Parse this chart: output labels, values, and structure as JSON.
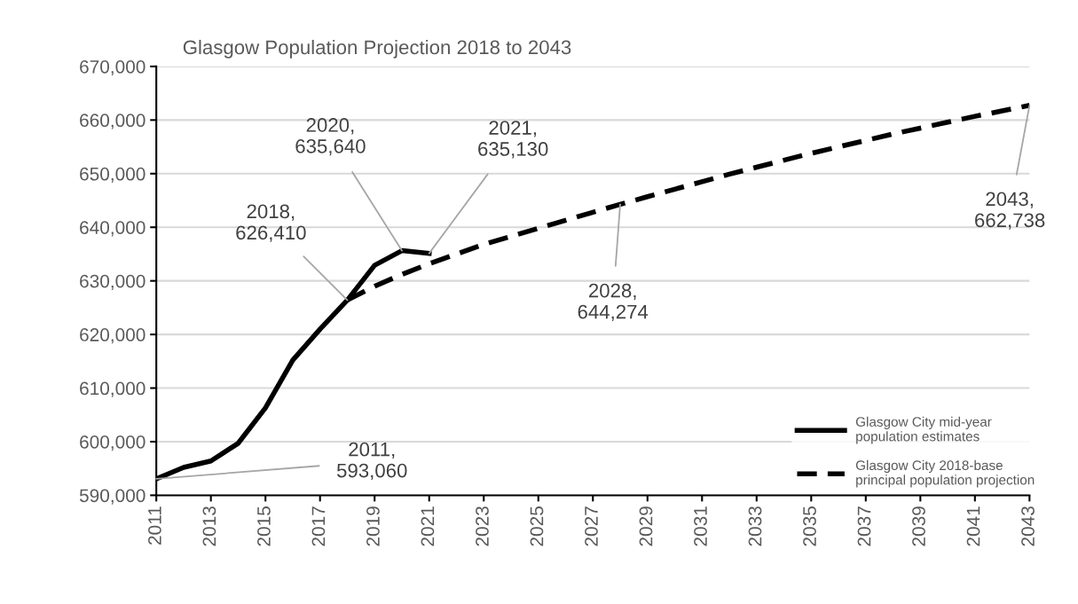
{
  "chart_data": {
    "type": "line",
    "title": "Glasgow Population Projection 2018 to 2043",
    "xlim": [
      2011,
      2043
    ],
    "xticks": [
      2011,
      2013,
      2015,
      2017,
      2019,
      2021,
      2023,
      2025,
      2027,
      2029,
      2031,
      2033,
      2035,
      2037,
      2039,
      2041,
      2043
    ],
    "ylim": [
      590000,
      670000
    ],
    "yticks": [
      {
        "value": 590000,
        "label": "590,000"
      },
      {
        "value": 600000,
        "label": "600,000"
      },
      {
        "value": 610000,
        "label": "610,000"
      },
      {
        "value": 620000,
        "label": "620,000"
      },
      {
        "value": 630000,
        "label": "630,000"
      },
      {
        "value": 640000,
        "label": "640,000"
      },
      {
        "value": 650000,
        "label": "650,000"
      },
      {
        "value": 660000,
        "label": "660,000"
      },
      {
        "value": 670000,
        "label": "670,000"
      }
    ],
    "grid": "y",
    "legend": "bottom right",
    "marker": "none",
    "series": [
      {
        "name": "Glasgow City mid-year population estimates",
        "color": "#000000",
        "line_style": "solid",
        "x": [
          2011,
          2012,
          2013,
          2014,
          2015,
          2016,
          2017,
          2018,
          2019,
          2020,
          2021
        ],
        "values": [
          593060,
          595200,
          596400,
          599700,
          606300,
          615200,
          621000,
          626410,
          632900,
          635640,
          635130
        ]
      },
      {
        "name": "Glasgow City 2018-base principal population projection",
        "color": "#000000",
        "line_style": "dashed",
        "x": [
          2018,
          2019,
          2020,
          2021,
          2022,
          2023,
          2024,
          2025,
          2026,
          2027,
          2028,
          2029,
          2030,
          2031,
          2032,
          2033,
          2034,
          2035,
          2036,
          2037,
          2038,
          2039,
          2040,
          2041,
          2042,
          2043
        ],
        "values": [
          626410,
          629000,
          631200,
          633200,
          635000,
          636800,
          638300,
          639800,
          641300,
          642800,
          644274,
          645700,
          647100,
          648500,
          649900,
          651200,
          652500,
          653800,
          655000,
          656200,
          657400,
          658500,
          659600,
          660700,
          661700,
          662738
        ]
      }
    ],
    "annotations": [
      {
        "text": "2011,\n593,060",
        "x": 2011,
        "y": 593060
      },
      {
        "text": "2018,\n626,410",
        "x": 2018,
        "y": 626410
      },
      {
        "text": "2020,\n635,640",
        "x": 2020,
        "y": 635640
      },
      {
        "text": "2021,\n635,130",
        "x": 2021,
        "y": 635130
      },
      {
        "text": "2028,\n644,274",
        "x": 2028,
        "y": 644274
      },
      {
        "text": "2043,\n662,738",
        "x": 2043,
        "y": 662738
      }
    ]
  }
}
